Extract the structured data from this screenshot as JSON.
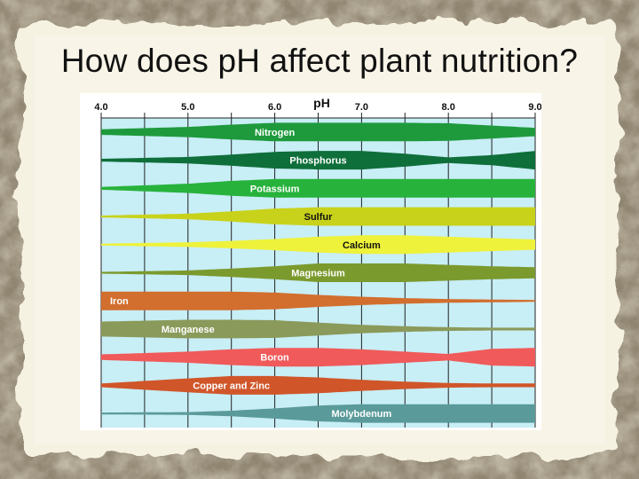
{
  "slide": {
    "title": "How does pH affect plant nutrition?"
  },
  "chart_data": {
    "type": "area",
    "title": "",
    "xlabel": "pH",
    "ylabel": "",
    "xlim": [
      4.0,
      9.0
    ],
    "x_ticks": [
      "4.0",
      "5.0",
      "6.0",
      "7.0",
      "8.0",
      "9.0"
    ],
    "grid": true,
    "legend": "none",
    "description": "",
    "series": [
      {
        "name": "Nitrogen",
        "color": "#1e9a3c",
        "label_color": "#ffffff",
        "x": [
          4.0,
          5.0,
          5.5,
          6.0,
          6.5,
          7.0,
          7.5,
          8.0,
          8.5,
          9.0
        ],
        "availability": [
          0.3,
          0.55,
          0.8,
          1.0,
          1.0,
          1.0,
          1.0,
          0.95,
          0.7,
          0.45
        ]
      },
      {
        "name": "Phosphorus",
        "color": "#0f6f3a",
        "label_color": "#ffffff",
        "x": [
          4.0,
          5.0,
          5.5,
          6.0,
          6.5,
          7.0,
          7.5,
          8.0,
          8.5,
          9.0
        ],
        "availability": [
          0.15,
          0.35,
          0.6,
          0.9,
          1.0,
          1.0,
          0.7,
          0.3,
          0.55,
          1.0
        ]
      },
      {
        "name": "Potassium",
        "color": "#27b23c",
        "label_color": "#ffffff",
        "x": [
          4.0,
          5.0,
          5.5,
          6.0,
          6.5,
          7.0,
          7.5,
          8.0,
          8.5,
          9.0
        ],
        "availability": [
          0.15,
          0.5,
          0.8,
          1.0,
          1.0,
          1.0,
          1.0,
          1.0,
          1.0,
          1.0
        ]
      },
      {
        "name": "Sulfur",
        "color": "#c8d21a",
        "label_color": "#111111",
        "x": [
          4.0,
          5.0,
          5.5,
          6.0,
          6.5,
          7.0,
          7.5,
          8.0,
          8.5,
          9.0
        ],
        "availability": [
          0.1,
          0.3,
          0.55,
          0.85,
          1.0,
          1.0,
          1.0,
          1.0,
          1.0,
          1.0
        ]
      },
      {
        "name": "Calcium",
        "color": "#eef23a",
        "label_color": "#111111",
        "x": [
          4.0,
          5.0,
          5.5,
          6.0,
          6.5,
          7.0,
          7.5,
          8.0,
          8.5,
          9.0
        ],
        "availability": [
          0.1,
          0.25,
          0.4,
          0.6,
          0.85,
          1.0,
          1.0,
          0.85,
          0.7,
          0.55
        ]
      },
      {
        "name": "Magnesium",
        "color": "#7b9a2e",
        "label_color": "#ffffff",
        "x": [
          4.0,
          5.0,
          5.5,
          6.0,
          6.5,
          7.0,
          7.5,
          8.0,
          8.5,
          9.0
        ],
        "availability": [
          0.1,
          0.25,
          0.45,
          0.7,
          1.0,
          1.0,
          1.0,
          0.85,
          0.7,
          0.6
        ]
      },
      {
        "name": "Iron",
        "color": "#d26e2e",
        "label_color": "#ffffff",
        "x": [
          4.0,
          5.0,
          5.5,
          6.0,
          6.5,
          7.0,
          7.5,
          8.0,
          8.5,
          9.0
        ],
        "availability": [
          1.0,
          1.0,
          1.0,
          0.9,
          0.65,
          0.45,
          0.3,
          0.2,
          0.15,
          0.1
        ]
      },
      {
        "name": "Manganese",
        "color": "#8a9a5a",
        "label_color": "#ffffff",
        "x": [
          4.0,
          5.0,
          5.5,
          6.0,
          6.5,
          7.0,
          7.5,
          8.0,
          8.5,
          9.0
        ],
        "availability": [
          0.8,
          1.0,
          1.0,
          0.95,
          0.7,
          0.45,
          0.3,
          0.2,
          0.15,
          0.15
        ]
      },
      {
        "name": "Boron",
        "color": "#f05a5a",
        "label_color": "#ffffff",
        "x": [
          4.0,
          5.0,
          5.5,
          6.0,
          6.5,
          7.0,
          7.5,
          8.0,
          8.5,
          9.0
        ],
        "availability": [
          0.3,
          0.6,
          0.85,
          1.0,
          1.0,
          0.85,
          0.6,
          0.35,
          0.9,
          1.0
        ]
      },
      {
        "name": "Copper and Zinc",
        "color": "#d0562a",
        "label_color": "#ffffff",
        "x": [
          4.0,
          5.0,
          5.5,
          6.0,
          6.5,
          7.0,
          7.5,
          8.0,
          8.5,
          9.0
        ],
        "availability": [
          0.2,
          0.75,
          1.0,
          1.0,
          0.85,
          0.6,
          0.4,
          0.25,
          0.2,
          0.2
        ]
      },
      {
        "name": "Molybdenum",
        "color": "#5a9a9a",
        "label_color": "#ffffff",
        "x": [
          4.0,
          5.0,
          5.5,
          6.0,
          6.5,
          7.0,
          7.5,
          8.0,
          8.5,
          9.0
        ],
        "availability": [
          0.1,
          0.15,
          0.3,
          0.55,
          0.85,
          1.0,
          1.0,
          1.0,
          1.0,
          1.0
        ]
      }
    ]
  }
}
